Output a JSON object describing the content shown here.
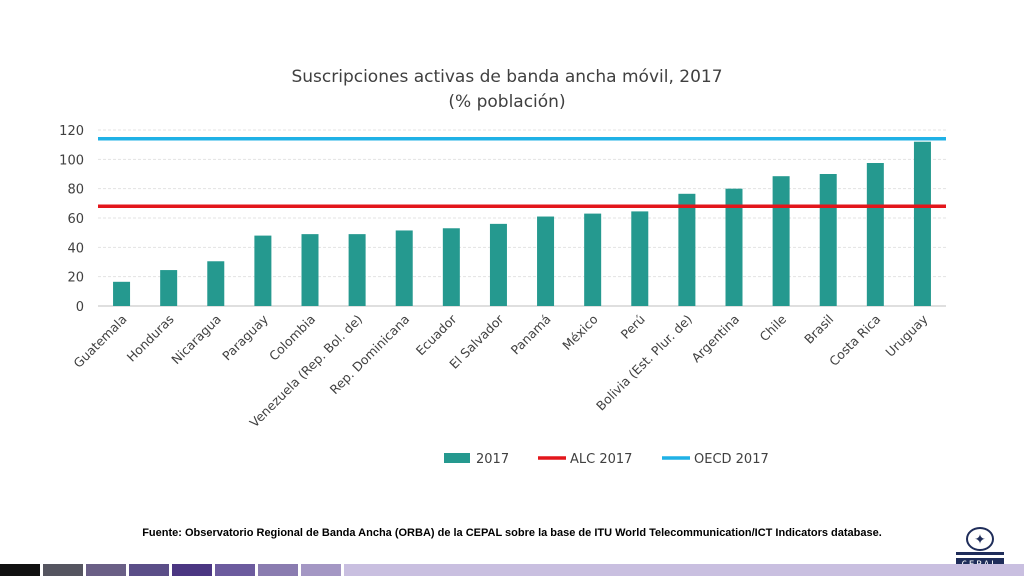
{
  "chart_data": {
    "type": "bar",
    "title": "Suscripciones activas de banda ancha móvil, 2017",
    "subtitle": "(% población)",
    "categories": [
      "Guatemala",
      "Honduras",
      "Nicaragua",
      "Paraguay",
      "Colombia",
      "Venezuela (Rep. Bol. de)",
      "Rep. Dominicana",
      "Ecuador",
      "El Salvador",
      "Panamá",
      "México",
      "Perú",
      "Bolivia (Est. Plur. de)",
      "Argentina",
      "Chile",
      "Brasil",
      "Costa Rica",
      "Uruguay"
    ],
    "series": [
      {
        "name": "2017",
        "type": "bar",
        "color": "#25998f",
        "values": [
          16.5,
          24.5,
          30.5,
          48,
          49,
          49,
          51.5,
          53,
          56,
          61,
          63,
          64.5,
          76.5,
          80,
          88.5,
          90,
          97.5,
          112
        ]
      },
      {
        "name": "ALC 2017",
        "type": "reference-line",
        "color": "#e3161b",
        "value": 68
      },
      {
        "name": "OECD 2017",
        "type": "reference-line",
        "color": "#1fb1e6",
        "value": 114
      }
    ],
    "yticks": [
      0,
      20,
      40,
      60,
      80,
      100,
      120
    ],
    "ylim": [
      0,
      120
    ],
    "grid": true,
    "legend": "bottom",
    "xlabel": "",
    "ylabel": ""
  },
  "source_note": "Fuente: Observatorio Regional de Banda Ancha (ORBA) de la CEPAL sobre la base de ITU World Telecommunication/ICT Indicators database.",
  "logo": {
    "org_text": "CEPAL",
    "emblem_icon": "un-emblem-icon"
  },
  "footer_colors": [
    "#111111",
    "#555560",
    "#6a5f86",
    "#5b4e88",
    "#4b3682",
    "#6c5b9e",
    "#8a7cb0",
    "#a497c4",
    "#c9bfe0"
  ]
}
